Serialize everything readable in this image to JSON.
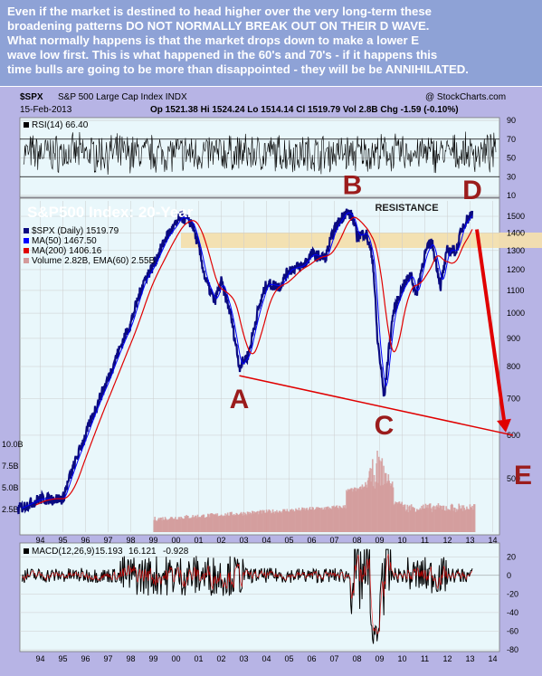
{
  "commentary": [
    "Even if the market is destined to head higher over the very long-term these",
    "broadening patterns DO NOT NORMALLY BREAK OUT ON THEIR D WAVE.",
    "What normally happens is that the market drops down to make a lower E",
    "wave low first. This is what happened in the 60's and 70's - if it happens this",
    "time bulls are going to be more than disappointed - they will be be ANNIHILATED."
  ],
  "colors": {
    "commentary": "#ffffff",
    "background": "#b7b4e5",
    "panel": "#e9f7fb",
    "price": "#0a0a80",
    "ma50": "#0000ff",
    "ma200": "#e00000",
    "volume": "#d49a9a",
    "annotation": "#9b1c1c",
    "resistance_band": "#f3dfae",
    "arrow": "#e00000",
    "macd": "#000000",
    "macd_signal": "#ff0000"
  },
  "header": {
    "symbol": "$SPX",
    "name": "S&P 500 Large Cap Index INDX",
    "watermark": "@ StockCharts.com",
    "date": "15-Feb-2013",
    "ohlc": "Op 1521.38  Hi 1524.24  Lo 1514.14  Cl 1519.79  Vol 2.8B  Chg -1.59 (-0.10%)"
  },
  "chart_data": [
    {
      "type": "line",
      "panel": "rsi",
      "legend": "RSI(14) 66.40",
      "ylim": [
        10,
        90
      ],
      "yticks": [
        10,
        30,
        50,
        70,
        90
      ],
      "grid": true
    },
    {
      "type": "line",
      "panel": "price",
      "title": "S&P500 Index: 20-Year",
      "legend": [
        "$SPX (Daily) 1519.79",
        "MA(50) 1467.50",
        "MA(200) 1406.16",
        "Volume 2.82B, EMA(60) 2.55B"
      ],
      "x": [
        1993.0,
        1994.0,
        1995.0,
        1996.0,
        1997.0,
        1998.0,
        1998.6,
        1999.0,
        1999.6,
        2000.0,
        2000.2,
        2000.7,
        2001.0,
        2001.3,
        2001.7,
        2002.0,
        2002.4,
        2002.8,
        2003.2,
        2003.6,
        2004.0,
        2004.6,
        2005.0,
        2005.6,
        2006.0,
        2006.6,
        2007.0,
        2007.5,
        2007.8,
        2008.0,
        2008.4,
        2008.7,
        2008.9,
        2009.2,
        2009.6,
        2010.0,
        2010.4,
        2010.6,
        2011.0,
        2011.3,
        2011.7,
        2012.0,
        2012.4,
        2012.7,
        2013.1
      ],
      "values": [
        440,
        460,
        460,
        600,
        760,
        960,
        1150,
        1220,
        1380,
        1450,
        1500,
        1460,
        1320,
        1150,
        1050,
        1140,
        1000,
        800,
        840,
        1000,
        1130,
        1120,
        1200,
        1220,
        1280,
        1260,
        1420,
        1530,
        1500,
        1380,
        1400,
        1250,
        900,
        700,
        1000,
        1110,
        1180,
        1070,
        1280,
        1350,
        1120,
        1300,
        1300,
        1450,
        1520
      ],
      "ylim": [
        400,
        1600
      ],
      "yticks": [
        500,
        600,
        700,
        800,
        900,
        1000,
        1100,
        1200,
        1300,
        1400,
        1500
      ],
      "volume_ticks": [
        "2.5B",
        "5.0B",
        "7.5B",
        "10.0B"
      ],
      "annotations": [
        {
          "label": "A",
          "x": 2002.8,
          "y": 770
        },
        {
          "label": "B",
          "x": 2007.8,
          "y": 1560
        },
        {
          "label": "C",
          "x": 2009.2,
          "y": 670
        },
        {
          "label": "D",
          "x": 2013.1,
          "y": 1530
        },
        {
          "label": "E",
          "x": 2014.5,
          "y": 560
        },
        {
          "label": "RESISTANCE",
          "x": 2010.2,
          "y": 1535
        }
      ],
      "resistance": [
        1480,
        1580
      ],
      "support_line": [
        [
          2002.8,
          770
        ],
        [
          2014.9,
          600
        ]
      ],
      "grid": true
    },
    {
      "type": "line",
      "panel": "macd",
      "legend": [
        "MACD(12,26,9)",
        "15.193",
        "16.121",
        "-0.928"
      ],
      "ylim": [
        -80,
        30
      ],
      "yticks": [
        -80,
        -60,
        -40,
        -20,
        0,
        20
      ],
      "grid": true
    }
  ],
  "xaxis": {
    "labels": [
      "94",
      "95",
      "96",
      "97",
      "98",
      "99",
      "00",
      "01",
      "02",
      "03",
      "04",
      "05",
      "06",
      "07",
      "08",
      "09",
      "10",
      "11",
      "12",
      "13",
      "14"
    ],
    "start_year": 1993.1,
    "end_year": 2014.3
  }
}
